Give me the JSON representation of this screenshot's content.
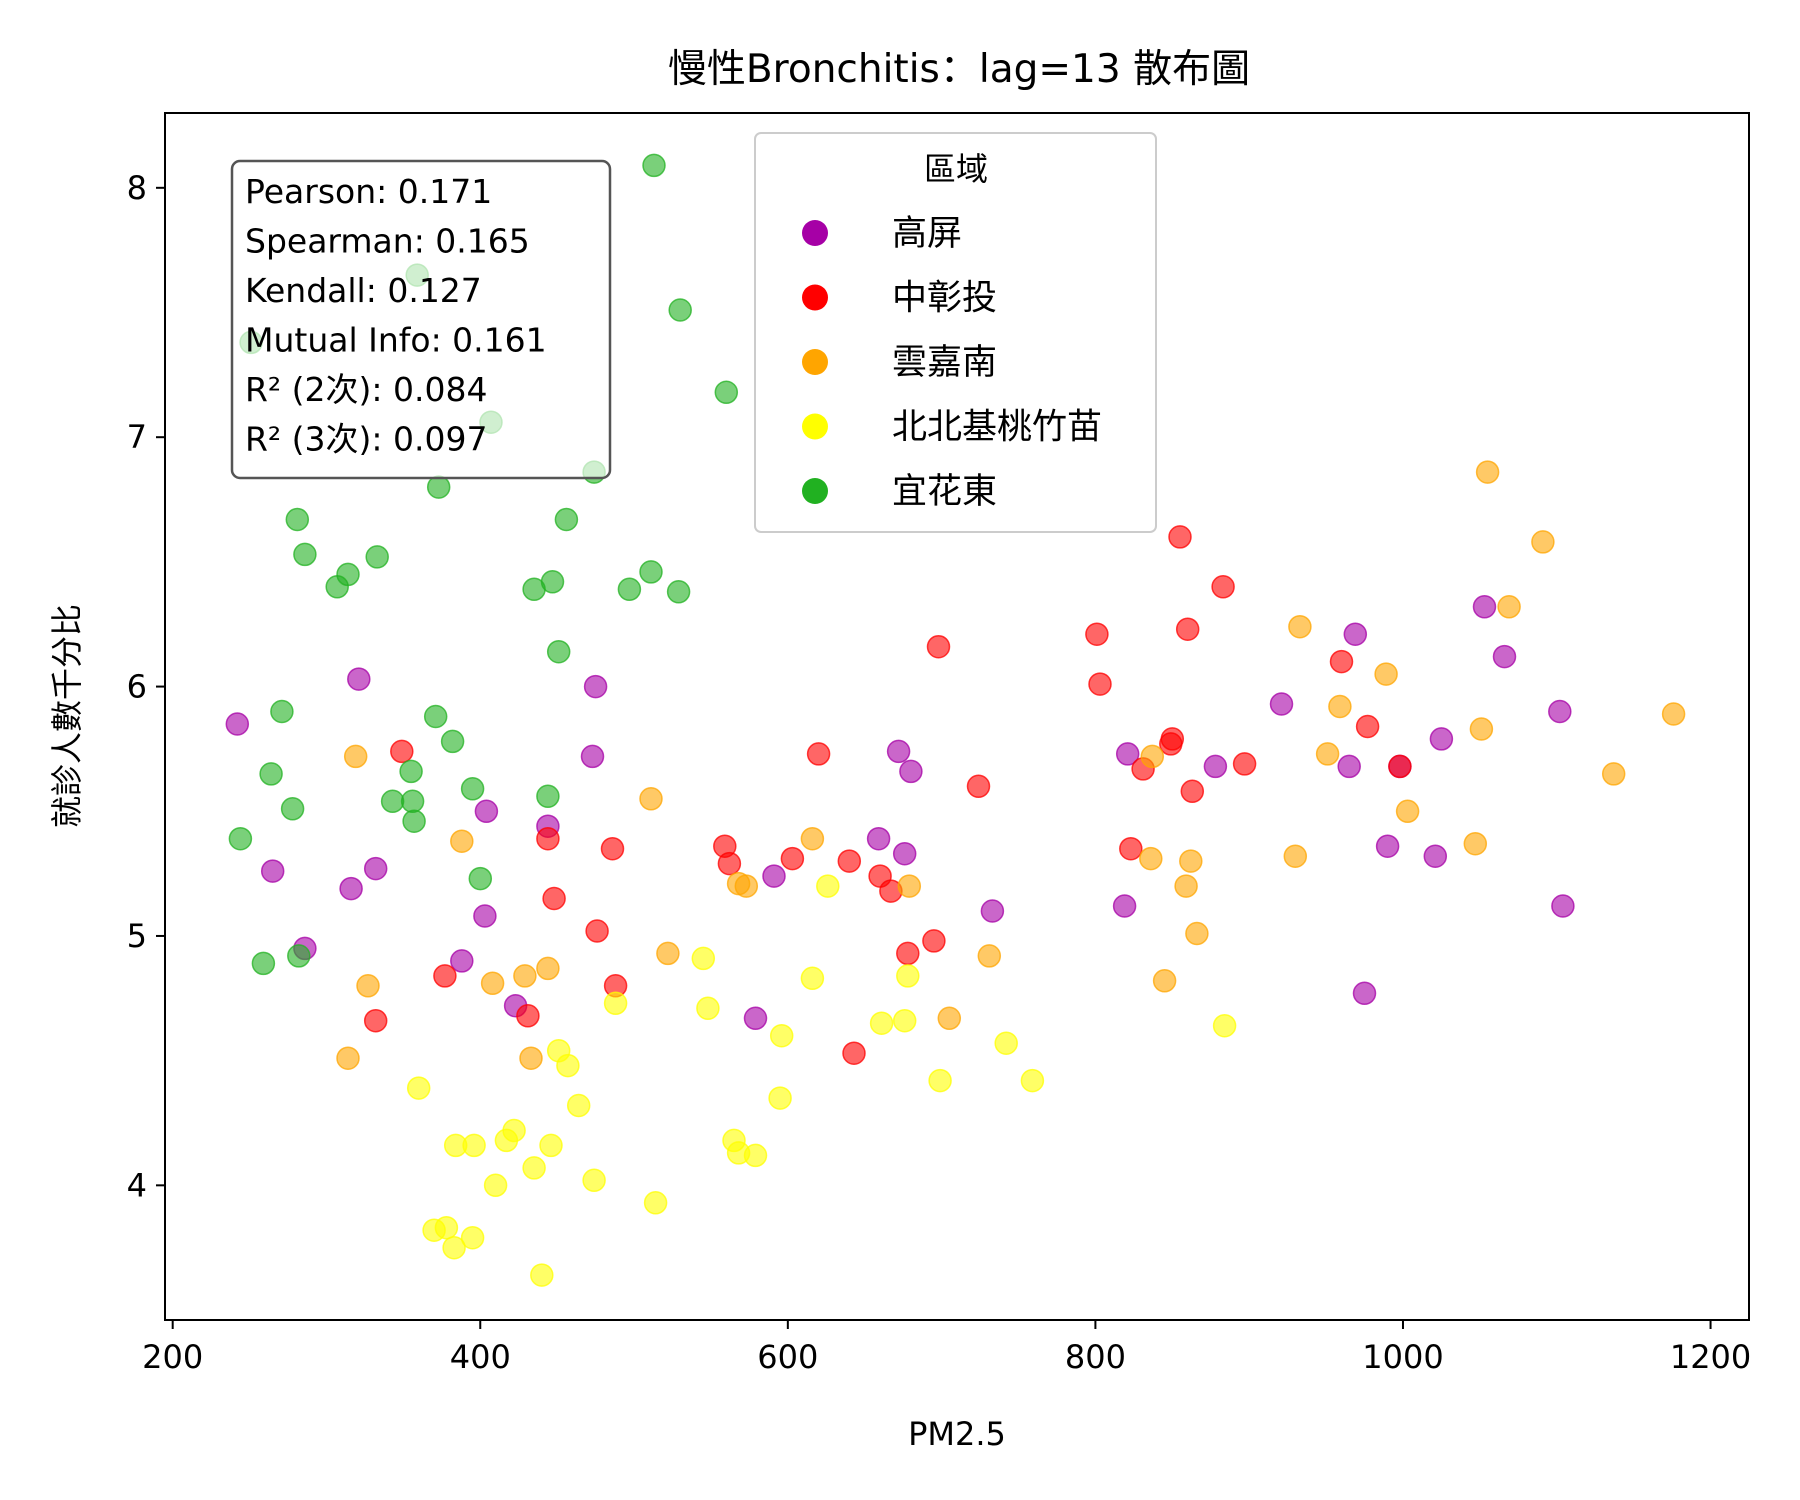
{
  "chart_data": {
    "type": "scatter",
    "title": "慢性Bronchitis：lag=13 散布圖",
    "xlabel": "PM2.5",
    "ylabel": "就診人數千分比",
    "xlim": [
      195,
      1225
    ],
    "ylim": [
      3.46,
      8.3
    ],
    "xticks": [
      200,
      400,
      600,
      800,
      1000,
      1200
    ],
    "yticks": [
      4,
      5,
      6,
      7,
      8
    ],
    "grid": false,
    "legend": {
      "title": "區域",
      "placement": "top-center"
    },
    "stats": [
      "Pearson: 0.171",
      "Spearman: 0.165",
      "Kendall: 0.127",
      "Mutual Info: 0.161",
      "R² (2次): 0.084",
      "R² (3次): 0.097"
    ],
    "series": [
      {
        "name": "高屏",
        "color": "#a600a6",
        "points": [
          [
            242,
            5.85
          ],
          [
            265,
            5.26
          ],
          [
            286,
            4.95
          ],
          [
            316,
            5.19
          ],
          [
            321,
            6.03
          ],
          [
            332,
            5.27
          ],
          [
            388,
            4.9
          ],
          [
            403,
            5.08
          ],
          [
            404,
            5.5
          ],
          [
            423,
            4.72
          ],
          [
            444,
            5.44
          ],
          [
            473,
            5.72
          ],
          [
            475,
            6.0
          ],
          [
            579,
            4.67
          ],
          [
            591,
            5.24
          ],
          [
            659,
            5.39
          ],
          [
            672,
            5.74
          ],
          [
            676,
            5.33
          ],
          [
            680,
            5.66
          ],
          [
            733,
            5.1
          ],
          [
            819,
            5.12
          ],
          [
            821,
            5.73
          ],
          [
            878,
            5.68
          ],
          [
            921,
            5.93
          ],
          [
            965,
            5.68
          ],
          [
            969,
            6.21
          ],
          [
            975,
            4.77
          ],
          [
            990,
            5.36
          ],
          [
            998,
            5.68
          ],
          [
            1021,
            5.32
          ],
          [
            1025,
            5.79
          ],
          [
            1053,
            6.32
          ],
          [
            1066,
            6.12
          ],
          [
            1102,
            5.9
          ],
          [
            1104,
            5.12
          ]
        ]
      },
      {
        "name": "中彰投",
        "color": "#ff0000",
        "points": [
          [
            332,
            4.66
          ],
          [
            349,
            5.74
          ],
          [
            377,
            4.84
          ],
          [
            431,
            4.68
          ],
          [
            444,
            5.39
          ],
          [
            448,
            5.15
          ],
          [
            476,
            5.02
          ],
          [
            486,
            5.35
          ],
          [
            488,
            4.8
          ],
          [
            559,
            5.36
          ],
          [
            562,
            5.29
          ],
          [
            603,
            5.31
          ],
          [
            620,
            5.73
          ],
          [
            640,
            5.3
          ],
          [
            643,
            4.53
          ],
          [
            660,
            5.24
          ],
          [
            667,
            5.18
          ],
          [
            678,
            4.93
          ],
          [
            695,
            4.98
          ],
          [
            698,
            6.16
          ],
          [
            724,
            5.6
          ],
          [
            801,
            6.21
          ],
          [
            803,
            6.01
          ],
          [
            823,
            5.35
          ],
          [
            831,
            5.67
          ],
          [
            849,
            5.77
          ],
          [
            850,
            5.79
          ],
          [
            855,
            6.6
          ],
          [
            860,
            6.23
          ],
          [
            863,
            5.58
          ],
          [
            883,
            6.4
          ],
          [
            897,
            5.69
          ],
          [
            960,
            6.1
          ],
          [
            977,
            5.84
          ],
          [
            998,
            5.68
          ]
        ]
      },
      {
        "name": "雲嘉南",
        "color": "#ffa500",
        "points": [
          [
            314,
            4.51
          ],
          [
            319,
            5.72
          ],
          [
            327,
            4.8
          ],
          [
            388,
            5.38
          ],
          [
            408,
            4.81
          ],
          [
            429,
            4.84
          ],
          [
            433,
            4.51
          ],
          [
            444,
            4.87
          ],
          [
            511,
            5.55
          ],
          [
            522,
            4.93
          ],
          [
            568,
            5.21
          ],
          [
            573,
            5.2
          ],
          [
            616,
            5.39
          ],
          [
            679,
            5.2
          ],
          [
            705,
            4.67
          ],
          [
            731,
            4.92
          ],
          [
            836,
            5.31
          ],
          [
            837,
            5.72
          ],
          [
            845,
            4.82
          ],
          [
            859,
            5.2
          ],
          [
            862,
            5.3
          ],
          [
            866,
            5.01
          ],
          [
            930,
            5.32
          ],
          [
            933,
            6.24
          ],
          [
            951,
            5.73
          ],
          [
            959,
            5.92
          ],
          [
            989,
            6.05
          ],
          [
            1003,
            5.5
          ],
          [
            1047,
            5.37
          ],
          [
            1051,
            5.83
          ],
          [
            1055,
            6.86
          ],
          [
            1069,
            6.32
          ],
          [
            1091,
            6.58
          ],
          [
            1137,
            5.65
          ],
          [
            1176,
            5.89
          ]
        ]
      },
      {
        "name": "北北基桃竹苗",
        "color": "#ffff00",
        "points": [
          [
            360,
            4.39
          ],
          [
            370,
            3.82
          ],
          [
            378,
            3.83
          ],
          [
            383,
            3.75
          ],
          [
            384,
            4.16
          ],
          [
            395,
            3.79
          ],
          [
            396,
            4.16
          ],
          [
            410,
            4.0
          ],
          [
            417,
            4.18
          ],
          [
            422,
            4.22
          ],
          [
            435,
            4.07
          ],
          [
            440,
            3.64
          ],
          [
            446,
            4.16
          ],
          [
            451,
            4.54
          ],
          [
            457,
            4.48
          ],
          [
            464,
            4.32
          ],
          [
            474,
            4.02
          ],
          [
            488,
            4.73
          ],
          [
            514,
            3.93
          ],
          [
            545,
            4.91
          ],
          [
            548,
            4.71
          ],
          [
            565,
            4.18
          ],
          [
            568,
            4.13
          ],
          [
            579,
            4.12
          ],
          [
            595,
            4.35
          ],
          [
            596,
            4.6
          ],
          [
            616,
            4.83
          ],
          [
            626,
            5.2
          ],
          [
            661,
            4.65
          ],
          [
            676,
            4.66
          ],
          [
            678,
            4.84
          ],
          [
            699,
            4.42
          ],
          [
            742,
            4.57
          ],
          [
            759,
            4.42
          ],
          [
            884,
            4.64
          ]
        ]
      },
      {
        "name": "宜花東",
        "color": "#21b121",
        "points": [
          [
            244,
            5.39
          ],
          [
            251,
            7.38
          ],
          [
            259,
            4.89
          ],
          [
            264,
            5.65
          ],
          [
            271,
            5.9
          ],
          [
            278,
            5.51
          ],
          [
            281,
            6.67
          ],
          [
            282,
            4.92
          ],
          [
            286,
            6.53
          ],
          [
            307,
            6.4
          ],
          [
            314,
            6.45
          ],
          [
            333,
            6.52
          ],
          [
            343,
            5.54
          ],
          [
            355,
            5.66
          ],
          [
            356,
            5.54
          ],
          [
            357,
            5.46
          ],
          [
            359,
            7.65
          ],
          [
            371,
            5.88
          ],
          [
            373,
            6.8
          ],
          [
            382,
            5.78
          ],
          [
            395,
            5.59
          ],
          [
            400,
            5.23
          ],
          [
            407,
            7.06
          ],
          [
            435,
            6.39
          ],
          [
            444,
            5.56
          ],
          [
            447,
            6.42
          ],
          [
            451,
            6.14
          ],
          [
            456,
            6.67
          ],
          [
            474,
            6.86
          ],
          [
            497,
            6.39
          ],
          [
            511,
            6.46
          ],
          [
            513,
            8.09
          ],
          [
            529,
            6.38
          ],
          [
            530,
            7.51
          ],
          [
            560,
            7.18
          ]
        ]
      }
    ]
  }
}
